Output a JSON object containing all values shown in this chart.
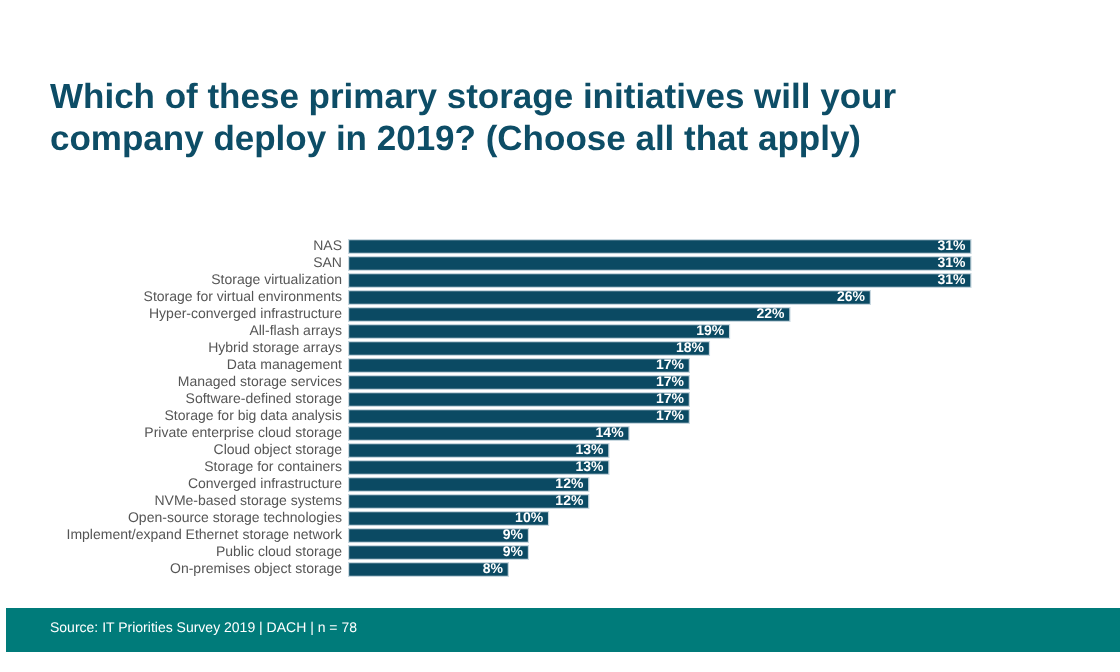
{
  "chart_data": {
    "type": "bar",
    "orientation": "horizontal",
    "title": "Which of these primary storage initiatives will your company deploy in 2019? (Choose all that apply)",
    "categories": [
      "NAS",
      "SAN",
      "Storage virtualization",
      "Storage for virtual environments",
      "Hyper-converged infrastructure",
      "All-flash arrays",
      "Hybrid storage arrays",
      "Data management",
      "Managed storage services",
      "Software-defined storage",
      "Storage for big data analysis",
      "Private enterprise cloud storage",
      "Cloud object storage",
      "Storage for containers",
      "Converged infrastructure",
      "NVMe-based storage systems",
      "Open-source storage technologies",
      "Implement/expand Ethernet storage network",
      "Public cloud storage",
      "On-premises object storage"
    ],
    "values": [
      31,
      31,
      31,
      26,
      22,
      19,
      18,
      17,
      17,
      17,
      17,
      14,
      13,
      13,
      12,
      12,
      10,
      9,
      9,
      8
    ],
    "value_labels": [
      "31%",
      "31%",
      "31%",
      "26%",
      "22%",
      "19%",
      "18%",
      "17%",
      "17%",
      "17%",
      "17%",
      "14%",
      "13%",
      "13%",
      "12%",
      "12%",
      "10%",
      "9%",
      "9%",
      "8%"
    ],
    "color": "#0b4a63",
    "annotations": [
      "Source: IT Priorities Survey 2019 | DACH | n = 78"
    ]
  }
}
